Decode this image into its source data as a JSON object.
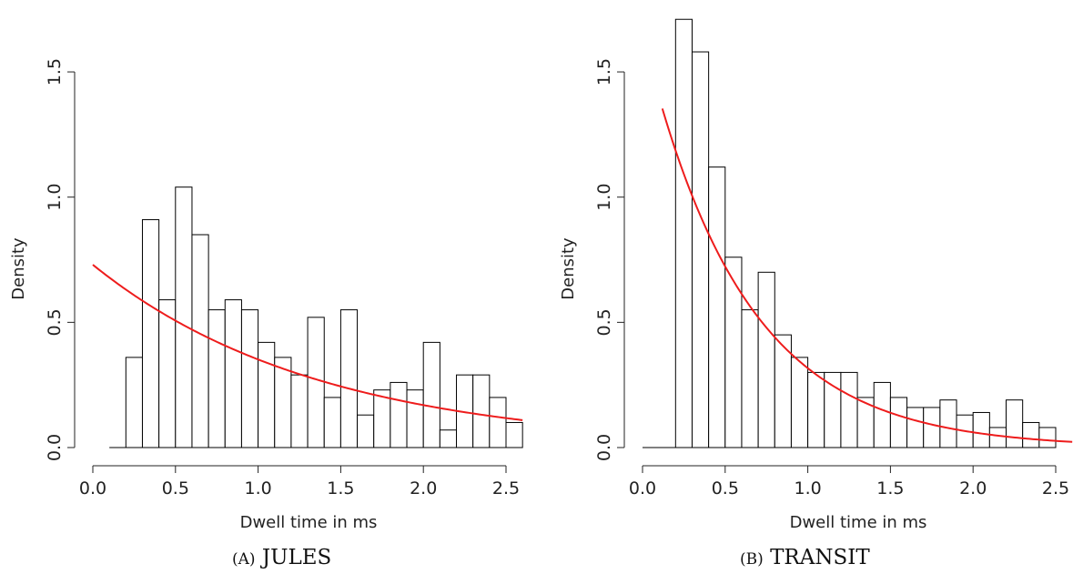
{
  "chart_data": [
    {
      "type": "bar",
      "caption_prefix": "(A)",
      "caption_label": "JULES",
      "xlabel": "Dwell time in ms",
      "ylabel": "Density",
      "xlim": [
        0,
        2.6
      ],
      "ylim": [
        0,
        1.5
      ],
      "x_ticks": [
        0.0,
        0.5,
        1.0,
        1.5,
        2.0,
        2.5
      ],
      "x_tick_labels": [
        "0.0",
        "0.5",
        "1.0",
        "1.5",
        "2.0",
        "2.5"
      ],
      "y_ticks": [
        0.0,
        0.5,
        1.0,
        1.5
      ],
      "y_tick_labels": [
        "0.0",
        "0.5",
        "1.0",
        "1.5"
      ],
      "bin_width": 0.1,
      "bin_start": 0.2,
      "values": [
        0.36,
        0.91,
        0.59,
        1.04,
        0.85,
        0.55,
        0.59,
        0.55,
        0.42,
        0.36,
        0.29,
        0.52,
        0.2,
        0.55,
        0.13,
        0.23,
        0.26,
        0.23,
        0.42,
        0.07,
        0.29,
        0.29,
        0.2,
        0.1
      ],
      "baseline_start": 0.1,
      "fit": {
        "type": "exponential",
        "rate": 0.73,
        "color": "#ee1c1c",
        "x_start": 0.0,
        "x_end": 2.6
      },
      "bar_fill": "#ffffff",
      "bar_stroke": "#000000"
    },
    {
      "type": "bar",
      "caption_prefix": "(B)",
      "caption_label": "TRANSIT",
      "xlabel": "Dwell time in ms",
      "ylabel": "Density",
      "xlim": [
        0,
        2.6
      ],
      "ylim": [
        0,
        1.5
      ],
      "x_ticks": [
        0.0,
        0.5,
        1.0,
        1.5,
        2.0,
        2.5
      ],
      "x_tick_labels": [
        "0.0",
        "0.5",
        "1.0",
        "1.5",
        "2.0",
        "2.5"
      ],
      "y_ticks": [
        0.0,
        0.5,
        1.0,
        1.5
      ],
      "y_tick_labels": [
        "0.0",
        "0.5",
        "1.0",
        "1.5"
      ],
      "bin_width": 0.1,
      "bin_start": 0.2,
      "values": [
        1.71,
        1.58,
        1.12,
        0.76,
        0.55,
        0.7,
        0.45,
        0.36,
        0.3,
        0.3,
        0.3,
        0.2,
        0.26,
        0.2,
        0.16,
        0.16,
        0.19,
        0.13,
        0.14,
        0.08,
        0.19,
        0.1,
        0.08
      ],
      "baseline_start": 0.0,
      "fit": {
        "type": "exponential",
        "rate": 1.65,
        "color": "#ee1c1c",
        "x_start": 0.12,
        "x_end": 2.6
      },
      "bar_fill": "#ffffff",
      "bar_stroke": "#000000"
    }
  ]
}
